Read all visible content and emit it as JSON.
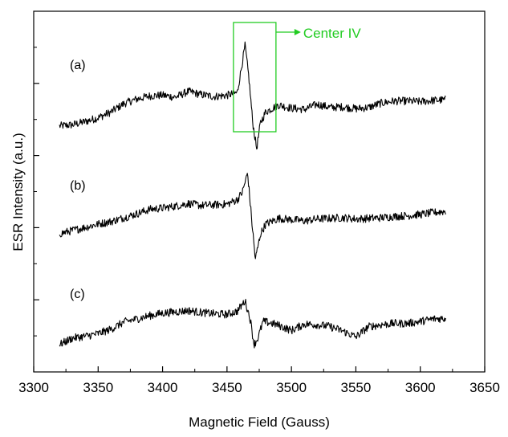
{
  "chart_data": {
    "type": "line",
    "title": "",
    "xlabel": "Magnetic Field (Gauss)",
    "ylabel": "ESR Intensity (a.u.)",
    "xlim": [
      3300,
      3650
    ],
    "xticks": [
      3300,
      3350,
      3400,
      3450,
      3500,
      3550,
      3600,
      3650
    ],
    "yticks_labeled": false,
    "grid": false,
    "legend": "none",
    "line_color": "#000000",
    "annotation": {
      "text": "Center IV",
      "color": "#22cc22",
      "box_x_range": [
        3455,
        3488
      ]
    },
    "series": [
      {
        "name": "(a)",
        "x": [
          3320,
          3330,
          3340,
          3350,
          3360,
          3370,
          3380,
          3390,
          3400,
          3410,
          3420,
          3430,
          3440,
          3450,
          3458,
          3464,
          3467,
          3470,
          3473,
          3476,
          3480,
          3490,
          3500,
          3510,
          3520,
          3530,
          3540,
          3550,
          3560,
          3570,
          3580,
          3590,
          3600,
          3610,
          3620
        ],
        "y": [
          1.02,
          1.2,
          1.7,
          2.3,
          3.2,
          4.5,
          5.2,
          5.7,
          5.8,
          5.5,
          6.4,
          5.9,
          5.6,
          5.8,
          6.2,
          13.5,
          8.5,
          1.5,
          -2.5,
          1.5,
          3.2,
          4.3,
          3.8,
          3.6,
          4.4,
          3.9,
          4.0,
          3.7,
          3.9,
          4.6,
          4.9,
          4.9,
          4.8,
          5.0,
          5.1
        ]
      },
      {
        "name": "(b)",
        "x": [
          3320,
          3330,
          3340,
          3350,
          3360,
          3370,
          3380,
          3390,
          3400,
          3410,
          3420,
          3430,
          3440,
          3450,
          3458,
          3462,
          3466,
          3469,
          3472,
          3476,
          3480,
          3490,
          3500,
          3510,
          3520,
          3530,
          3540,
          3550,
          3560,
          3570,
          3580,
          3590,
          3600,
          3610,
          3620
        ],
        "y": [
          1.5,
          2.0,
          2.5,
          3.0,
          3.4,
          4.0,
          4.6,
          5.3,
          5.5,
          5.8,
          6.2,
          5.9,
          6.0,
          6.1,
          6.8,
          8.0,
          11.0,
          4.0,
          -2.5,
          1.5,
          3.0,
          3.9,
          3.7,
          3.5,
          3.8,
          3.9,
          4.0,
          3.8,
          3.9,
          4.0,
          4.2,
          4.3,
          4.5,
          4.8,
          5.0
        ]
      },
      {
        "name": "(c)",
        "x": [
          3320,
          3330,
          3340,
          3350,
          3360,
          3370,
          3380,
          3390,
          3400,
          3410,
          3420,
          3430,
          3440,
          3450,
          3458,
          3464,
          3468,
          3471,
          3474,
          3478,
          3485,
          3490,
          3500,
          3510,
          3520,
          3530,
          3540,
          3550,
          3560,
          3570,
          3580,
          3590,
          3600,
          3610,
          3620
        ],
        "y": [
          1.0,
          2.0,
          2.3,
          2.7,
          3.4,
          4.5,
          5.0,
          5.5,
          5.9,
          6.1,
          6.3,
          6.0,
          5.8,
          5.7,
          6.2,
          7.8,
          5.0,
          1.0,
          2.0,
          4.6,
          4.3,
          4.0,
          3.2,
          4.2,
          4.1,
          3.8,
          3.1,
          2.2,
          3.8,
          4.1,
          4.3,
          4.3,
          4.6,
          5.0,
          5.1
        ]
      }
    ]
  }
}
